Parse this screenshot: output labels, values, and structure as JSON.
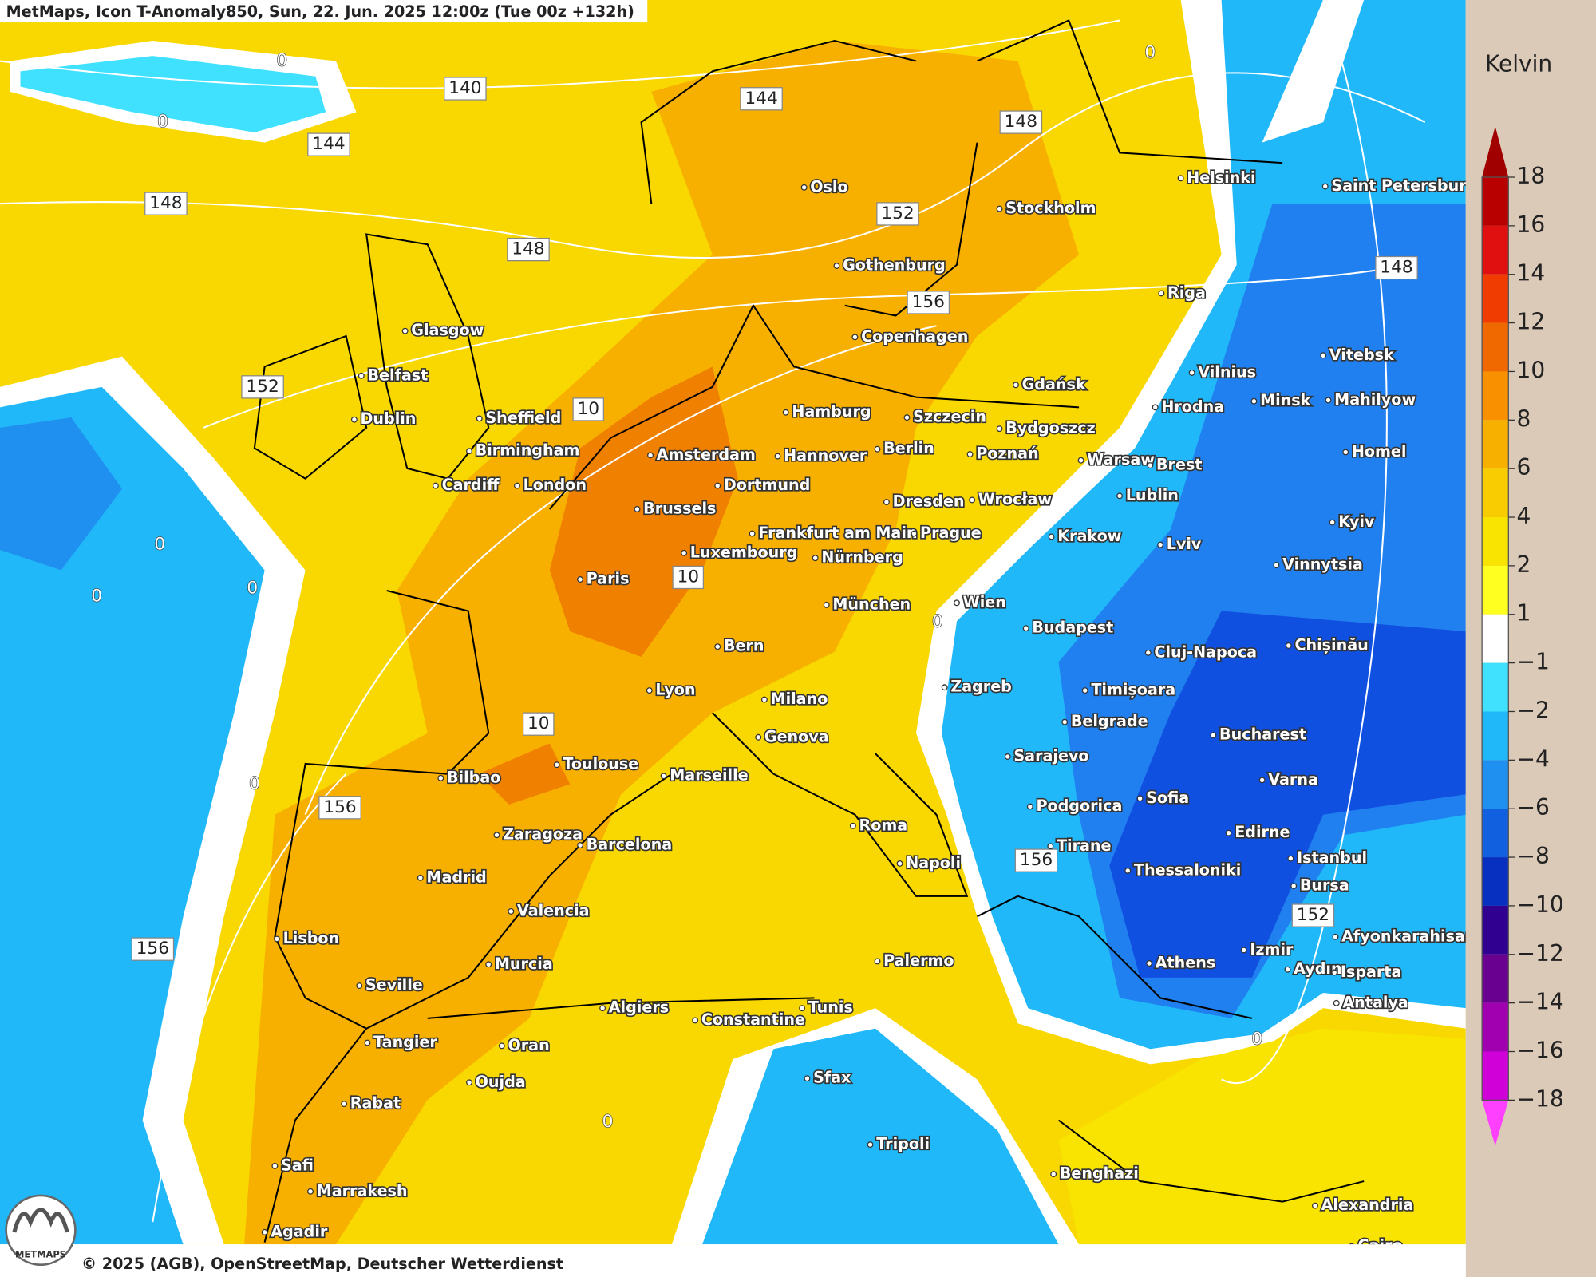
{
  "header": {
    "title": "MetMaps, Icon T-Anomaly850, Sun, 22. Jun. 2025 12:00z (Tue 00z +132h)"
  },
  "colorbar": {
    "unit": "Kelvin",
    "ticks": [
      "18",
      "16",
      "14",
      "12",
      "10",
      "8",
      "6",
      "4",
      "2",
      "1",
      "−1",
      "−2",
      "−4",
      "−6",
      "−8",
      "−10",
      "−12",
      "−14",
      "−16",
      "−18"
    ],
    "colors": [
      "#a00000",
      "#b80000",
      "#e01010",
      "#f03c00",
      "#f06800",
      "#f89000",
      "#f8b000",
      "#f8cc00",
      "#f8e400",
      "#ffff20",
      "#ffffff",
      "#40e0ff",
      "#20b8f8",
      "#2090f0",
      "#1060e0",
      "#0830c0",
      "#300090",
      "#6a0090",
      "#a000b0",
      "#d000d8",
      "#ff40ff"
    ]
  },
  "cities": [
    "Oslo",
    "Stockholm",
    "Helsinki",
    "Saint Petersburg",
    "Gothenburg",
    "Riga",
    "Glasgow",
    "Copenhagen",
    "Belfast",
    "Gdańsk",
    "Vilnius",
    "Vitebsk",
    "Dublin",
    "Sheffield",
    "Hamburg",
    "Szczecin",
    "Bydgoszcz",
    "Hrodna",
    "Minsk",
    "Mahilyow",
    "Birmingham",
    "Amsterdam",
    "Hannover",
    "Berlin",
    "Poznań",
    "Warsaw",
    "Brest",
    "Homel",
    "Cardiff",
    "London",
    "Dortmund",
    "Lublin",
    "Brussels",
    "Dresden",
    "Wrocław",
    "Kyiv",
    "Frankfurt am Main",
    "Prague",
    "Krakow",
    "Lviv",
    "Luxembourg",
    "Nürnberg",
    "Vinnytsia",
    "Paris",
    "München",
    "Wien",
    "Budapest",
    "Chișinău",
    "Cluj-Napoca",
    "Bern",
    "Zagreb",
    "Timișoara",
    "Lyon",
    "Milano",
    "Belgrade",
    "Bucharest",
    "Genova",
    "Sarajevo",
    "Toulouse",
    "Marseille",
    "Bilbao",
    "Varna",
    "Sofia",
    "Podgorica",
    "Roma",
    "Zaragoza",
    "Edirne",
    "Barcelona",
    "Tirane",
    "Istanbul",
    "Napoli",
    "Thessaloniki",
    "Madrid",
    "Bursa",
    "Valencia",
    "Afyonkarahisar",
    "Lisbon",
    "Izmir",
    "Athens",
    "Palermo",
    "Murcia",
    "Aydın",
    "Isparta",
    "Seville",
    "Antalya",
    "Algiers",
    "Tunis",
    "Constantine",
    "Tangier",
    "Oran",
    "Sfax",
    "Oujda",
    "Rabat",
    "Tripoli",
    "Benghazi",
    "Safi",
    "Marrakesh",
    "Alexandria",
    "Agadir",
    "Cairo"
  ],
  "contour_labels": [
    "140",
    "144",
    "148",
    "144",
    "148",
    "152",
    "148",
    "156",
    "148",
    "152",
    "10",
    "10",
    "10",
    "156",
    "156",
    "152",
    "156",
    "0",
    "0",
    "0",
    "0",
    "0",
    "0",
    "0",
    "0",
    "0",
    "0"
  ],
  "logo": "METMAPS",
  "footer": "© 2025 (AGB), OpenStreetMap, Deutscher Wetterdienst"
}
